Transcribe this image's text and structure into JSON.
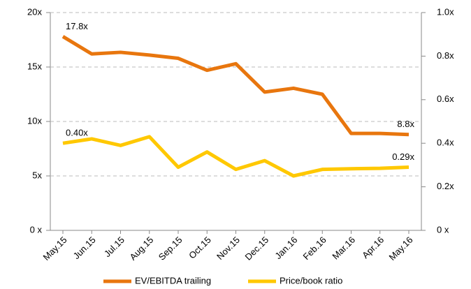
{
  "chart_data": {
    "type": "line",
    "categories": [
      "May.15",
      "Jun.15",
      "Jul.15",
      "Aug.15",
      "Sep.15",
      "Oct.15",
      "Nov.15",
      "Dec.15",
      "Jan.16",
      "Feb.16",
      "Mar.16",
      "Apr.16",
      "May.16"
    ],
    "series": [
      {
        "name": "EV/EBITDA trailing",
        "color": "#e8760e",
        "values": [
          17.8,
          16.2,
          16.35,
          16.1,
          15.8,
          14.7,
          15.3,
          12.7,
          13.05,
          12.5,
          8.9,
          8.9,
          8.8
        ],
        "value_labels": [
          "17.8x",
          null,
          null,
          null,
          null,
          null,
          null,
          null,
          null,
          null,
          null,
          null,
          "8.8x"
        ]
      },
      {
        "name": "Price/book ratio",
        "color": "#ffc800",
        "axis": "y2",
        "values": [
          0.4,
          0.42,
          0.39,
          0.43,
          0.29,
          0.36,
          0.28,
          0.32,
          0.25,
          0.28,
          0.283,
          0.285,
          0.29
        ],
        "value_labels": [
          "0.40x",
          null,
          null,
          null,
          null,
          null,
          null,
          null,
          null,
          null,
          null,
          null,
          "0.29x"
        ]
      }
    ],
    "ylim": [
      0,
      20
    ],
    "yticks": [
      {
        "value": 0,
        "label": "0 x"
      },
      {
        "value": 5,
        "label": "5x"
      },
      {
        "value": 10,
        "label": "10x"
      },
      {
        "value": 15,
        "label": "15x"
      },
      {
        "value": 20,
        "label": "20x"
      }
    ],
    "y2lim": [
      0,
      1
    ],
    "y2ticks": [
      {
        "value": 0,
        "label": "0 x"
      },
      {
        "value": 0.2,
        "label": "0.2x"
      },
      {
        "value": 0.4,
        "label": "0.4x"
      },
      {
        "value": 0.6,
        "label": "0.6x"
      },
      {
        "value": 0.8,
        "label": "0.8x"
      },
      {
        "value": 1,
        "label": "1.0x"
      }
    ],
    "grid": true,
    "legend": "bottom"
  }
}
